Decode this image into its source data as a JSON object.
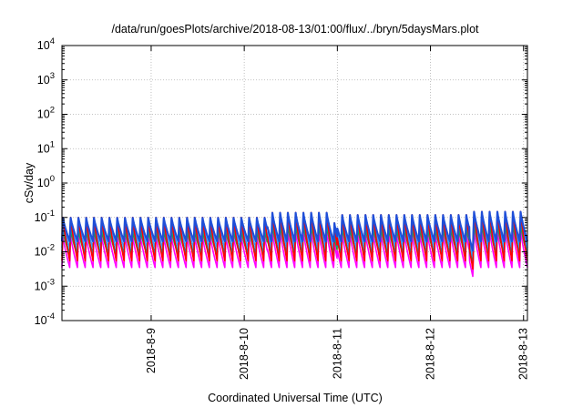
{
  "chart_data": {
    "type": "line",
    "title": "/data/run/goesPlots/archive/2018-08-13/01:00/flux/../bryn/5daysMars.plot",
    "xlabel": "Coordinated Universal Time (UTC)",
    "ylabel": "cSv/day",
    "y_scale": "log",
    "ylim": [
      0.0001,
      10000
    ],
    "y_ticks": [
      {
        "value": 0.0001,
        "base": "10",
        "exp": "-4"
      },
      {
        "value": 0.001,
        "base": "10",
        "exp": "-3"
      },
      {
        "value": 0.01,
        "base": "10",
        "exp": "-2"
      },
      {
        "value": 0.1,
        "base": "10",
        "exp": "-1"
      },
      {
        "value": 1,
        "base": "10",
        "exp": "0"
      },
      {
        "value": 10,
        "base": "10",
        "exp": "1"
      },
      {
        "value": 100,
        "base": "10",
        "exp": "2"
      },
      {
        "value": 1000,
        "base": "10",
        "exp": "3"
      },
      {
        "value": 10000,
        "base": "10",
        "exp": "4"
      }
    ],
    "xlim": [
      "2018-08-08T01:00",
      "2018-08-13T01:00"
    ],
    "x_ticks": [
      "2018-8-9",
      "2018-8-10",
      "2018-8-11",
      "2018-8-12",
      "2018-8-13"
    ],
    "grid": true,
    "pattern": {
      "orbit_period_hours": 2.0,
      "segments": [
        {
          "from": "2018-08-08T01:00",
          "to": "2018-08-10T06:00",
          "peak": 0.1
        },
        {
          "from": "2018-08-10T06:00",
          "to": "2018-08-11T00:00",
          "peak": 0.14
        },
        {
          "from": "2018-08-11T00:00",
          "to": "2018-08-12T10:00",
          "peak": 0.12
        },
        {
          "from": "2018-08-12T10:00",
          "to": "2018-08-13T01:00",
          "peak": 0.15
        }
      ],
      "dropouts": [
        "2018-08-10T23:30",
        "2018-08-12T10:30"
      ]
    },
    "series": [
      {
        "color": "#ff0000",
        "peak_factor": 1.05,
        "trough": 0.0055
      },
      {
        "color": "#1f4fd8",
        "peak_factor": 1.0,
        "trough": 0.02
      },
      {
        "color": "#2aa0ff",
        "peak_factor": 0.75,
        "trough": 0.013
      },
      {
        "color": "#00a0a0",
        "peak_factor": 0.55,
        "trough": 0.009
      },
      {
        "color": "#22aa22",
        "peak_factor": 0.45,
        "trough": 0.0075
      },
      {
        "color": "#ff00ff",
        "peak_factor": 0.3,
        "trough": 0.0035
      }
    ]
  }
}
